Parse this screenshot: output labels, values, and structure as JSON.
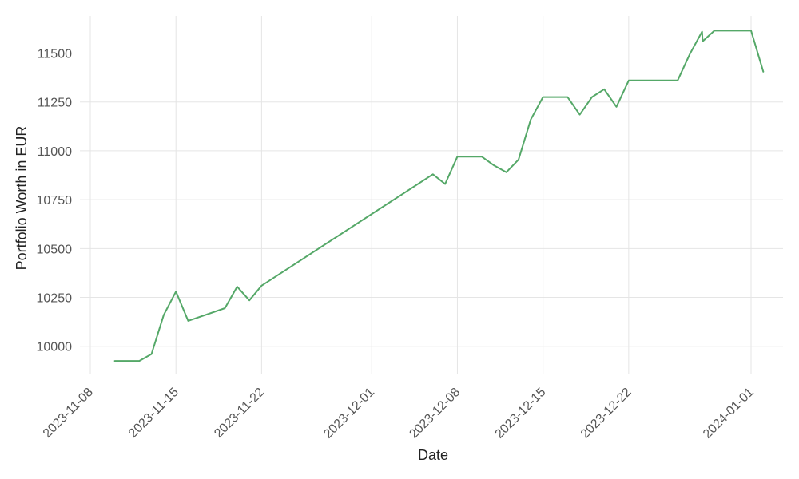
{
  "chart_data": {
    "type": "line",
    "title": "",
    "xlabel": "Date",
    "ylabel": "Portfolio Worth in EUR",
    "x_ticks": [
      "2023-11-08",
      "2023-11-15",
      "2023-11-22",
      "2023-12-01",
      "2023-12-08",
      "2023-12-15",
      "2023-12-22",
      "2024-01-01"
    ],
    "y_ticks": [
      10000,
      10250,
      10500,
      10750,
      11000,
      11250,
      11500
    ],
    "ylim": [
      9860,
      11690
    ],
    "xlim": [
      "2023-11-08",
      "2024-01-04"
    ],
    "grid": true,
    "legend": "none",
    "line_color": "#55a868",
    "series": [
      {
        "x": [
          "2023-11-10",
          "2023-11-11",
          "2023-11-12",
          "2023-11-13",
          "2023-11-14",
          "2023-11-15",
          "2023-11-16",
          "2023-11-19",
          "2023-11-20",
          "2023-11-21",
          "2023-11-22",
          "2023-12-06",
          "2023-12-07",
          "2023-12-08",
          "2023-12-09",
          "2023-12-10",
          "2023-12-11",
          "2023-12-12",
          "2023-12-13",
          "2023-12-14",
          "2023-12-15",
          "2023-12-16",
          "2023-12-17",
          "2023-12-18",
          "2023-12-19",
          "2023-12-20",
          "2023-12-21",
          "2023-12-22",
          "2023-12-23",
          "2023-12-24",
          "2023-12-25",
          "2023-12-26",
          "2023-12-27",
          "2023-12-28",
          "2023-12-28T01:00",
          "2023-12-29",
          "2023-12-30",
          "2023-12-31",
          "2024-01-01",
          "2024-01-02"
        ],
        "y": [
          9925,
          9925,
          9925,
          9960,
          10160,
          10280,
          10130,
          10195,
          10305,
          10235,
          10310,
          10880,
          10830,
          10970,
          10970,
          10970,
          10925,
          10890,
          10955,
          11160,
          11275,
          11275,
          11275,
          11185,
          11275,
          11315,
          11225,
          11360,
          11360,
          11360,
          11360,
          11360,
          11495,
          11610,
          11560,
          11615,
          11615,
          11615,
          11615,
          11405
        ]
      }
    ]
  }
}
